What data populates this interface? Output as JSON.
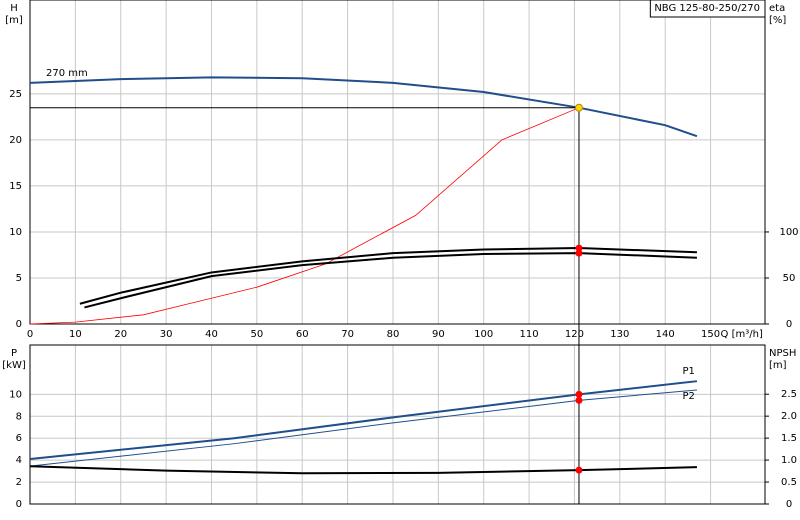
{
  "chart_data": [
    {
      "type": "line",
      "title": "NBG 125-80-250/270",
      "y_label": "H",
      "y_unit": "[m]",
      "y2_label": "eta",
      "y2_unit": "[%]",
      "x_label": "Q [m³/h]",
      "xlim": [
        0,
        162
      ],
      "xticks": [
        0,
        10,
        20,
        30,
        40,
        50,
        60,
        70,
        80,
        90,
        100,
        110,
        120,
        130,
        140,
        150
      ],
      "ylim": [
        0,
        35.2
      ],
      "yticks": [
        0,
        5,
        10,
        15,
        20,
        25
      ],
      "y2lim": [
        0,
        352
      ],
      "y2ticks": [
        0,
        50,
        100
      ],
      "grid": true,
      "series": [
        {
          "name": "270 mm",
          "color": "#1f4e8c",
          "line_width": 2,
          "x": [
            0,
            20,
            40,
            60,
            80,
            100,
            121,
            140,
            147
          ],
          "values": [
            26.2,
            26.6,
            26.8,
            26.7,
            26.2,
            25.2,
            23.5,
            21.6,
            20.4
          ]
        },
        {
          "color": "#ff0000",
          "line_width": 0.8,
          "x": [
            0,
            10,
            25,
            35,
            50,
            65,
            85,
            104,
            121
          ],
          "values": [
            0,
            0.2,
            1,
            2.2,
            4,
            6.5,
            11.8,
            20,
            23.5
          ]
        },
        {
          "color": "#000000",
          "line_width": 2,
          "axis": "y2",
          "x": [
            11,
            20,
            40,
            60,
            80,
            100,
            121,
            147
          ],
          "values": [
            22,
            34,
            56,
            68,
            77,
            81,
            82.5,
            78
          ]
        },
        {
          "color": "#000000",
          "line_width": 2,
          "axis": "y2",
          "x": [
            12,
            20,
            40,
            60,
            80,
            100,
            121,
            147
          ],
          "values": [
            18,
            28,
            52,
            64,
            72,
            76,
            77,
            72
          ]
        }
      ],
      "markers": [
        {
          "x": 121,
          "y": 23.5,
          "color": "#ffd700"
        },
        {
          "x": 121,
          "y": 82.5,
          "color": "#ff0000",
          "axis": "y2"
        },
        {
          "x": 121,
          "y": 77,
          "color": "#ff0000",
          "axis": "y2"
        }
      ]
    },
    {
      "type": "line",
      "y_label": "P",
      "y_unit": "[kW]",
      "y2_label": "NPSH",
      "y2_unit": "[m]",
      "xlim": [
        0,
        162
      ],
      "xticks": [
        0,
        10,
        20,
        30,
        40,
        50,
        60,
        70,
        80,
        90,
        100,
        110,
        120,
        130,
        140,
        150
      ],
      "xtick_labels": false,
      "ylim": [
        0,
        14.5
      ],
      "yticks": [
        0,
        2,
        4,
        6,
        8,
        10
      ],
      "y2lim": [
        0,
        3.62
      ],
      "y2ticks": [
        0,
        0.5,
        {
          "value": 1,
          "label": "1.0"
        },
        1.5,
        {
          "value": 2,
          "label": "2.0"
        },
        2.5
      ],
      "grid": true,
      "series": [
        {
          "name": "P1",
          "color": "#1f4e8c",
          "line_width": 2,
          "x": [
            0,
            45,
            80,
            121,
            147
          ],
          "values": [
            4.1,
            6.0,
            7.9,
            10.0,
            11.2
          ]
        },
        {
          "name": "P2",
          "color": "#1f4e8c",
          "line_width": 1,
          "x": [
            0,
            45,
            80,
            121,
            147
          ],
          "values": [
            3.45,
            5.5,
            7.4,
            9.45,
            10.4
          ]
        },
        {
          "color": "#000000",
          "line_width": 2,
          "axis": "y2",
          "x": [
            0,
            30,
            60,
            90,
            121,
            147
          ],
          "values": [
            0.86,
            0.76,
            0.7,
            0.71,
            0.77,
            0.84
          ]
        }
      ],
      "markers": [
        {
          "x": 121,
          "y": 10.0,
          "color": "#ff0000"
        },
        {
          "x": 121,
          "y": 9.45,
          "color": "#ff0000"
        },
        {
          "x": 121,
          "y": 0.77,
          "color": "#ff0000",
          "axis": "y2"
        }
      ]
    }
  ]
}
